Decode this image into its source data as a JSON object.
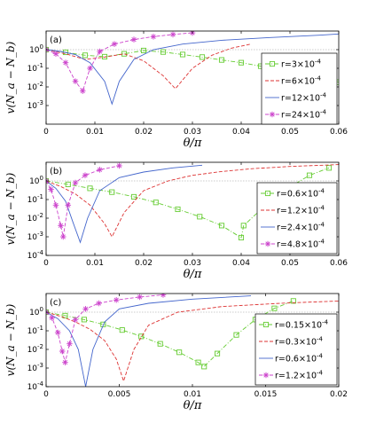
{
  "chart_data": [
    {
      "type": "line",
      "panel_label": "(a)",
      "xlabel": "θ/π",
      "ylabel": "v(N_a − N_b)",
      "y_scale": "log",
      "xlim": [
        0,
        0.06
      ],
      "ylim": [
        0.0001,
        10
      ],
      "xticks": [
        "0",
        "0.01",
        "0.02",
        "0.03",
        "0.04",
        "0.05",
        "0.06"
      ],
      "yticks": [
        "10^0",
        "10^-1",
        "10^-2",
        "10^-3"
      ],
      "reference_line_y": 1,
      "legend_position": "right",
      "series": [
        {
          "name": "r=3×10^-4",
          "color": "#66cc33",
          "dash": "dashdot",
          "marker": "square",
          "x": [
            0,
            0.004,
            0.008,
            0.012,
            0.016,
            0.02,
            0.024,
            0.028,
            0.032,
            0.036,
            0.04,
            0.044,
            0.048,
            0.052,
            0.056,
            0.06
          ],
          "y": [
            1.0,
            0.72,
            0.5,
            0.42,
            0.6,
            0.9,
            0.75,
            0.55,
            0.4,
            0.28,
            0.2,
            0.13,
            0.085,
            0.05,
            0.03,
            0.018
          ]
        },
        {
          "name": "r=6×10^-4",
          "color": "#dd3333",
          "dash": "dashed",
          "marker": "none",
          "x": [
            0,
            0.004,
            0.008,
            0.012,
            0.016,
            0.02,
            0.024,
            0.0265,
            0.03,
            0.034,
            0.038,
            0.042
          ],
          "y": [
            1.0,
            0.6,
            0.3,
            0.4,
            0.6,
            0.25,
            0.04,
            0.008,
            0.1,
            0.5,
            1.2,
            2.0
          ]
        },
        {
          "name": "r=12×10^-4",
          "color": "#4466cc",
          "dash": "solid",
          "marker": "none",
          "x": [
            0,
            0.003,
            0.006,
            0.009,
            0.012,
            0.0135,
            0.015,
            0.018,
            0.022,
            0.028,
            0.036,
            0.046,
            0.056,
            0.06
          ],
          "y": [
            1.0,
            0.8,
            0.55,
            0.2,
            0.02,
            0.0012,
            0.02,
            0.3,
            1.0,
            2.0,
            3.2,
            4.5,
            6.0,
            7.0
          ]
        },
        {
          "name": "r=24×10^-4",
          "color": "#cc44cc",
          "dash": "dashed",
          "marker": "asterisk",
          "x": [
            0,
            0.002,
            0.004,
            0.006,
            0.0075,
            0.009,
            0.011,
            0.014,
            0.018,
            0.022,
            0.026,
            0.03
          ],
          "y": [
            1.0,
            0.6,
            0.2,
            0.02,
            0.006,
            0.1,
            0.8,
            2.0,
            3.5,
            5.0,
            6.5,
            8.0
          ]
        }
      ]
    },
    {
      "type": "line",
      "panel_label": "(b)",
      "xlabel": "θ/π",
      "ylabel": "v(N_a − N_b)",
      "y_scale": "log",
      "xlim": [
        0,
        0.06
      ],
      "ylim": [
        0.0001,
        10
      ],
      "xticks": [
        "0",
        "0.01",
        "0.02",
        "0.03",
        "0.04",
        "0.05",
        "0.06"
      ],
      "yticks": [
        "10^0",
        "10^-1",
        "10^-2",
        "10^-3",
        "10^-4"
      ],
      "reference_line_y": 1,
      "legend_position": "right",
      "series": [
        {
          "name": "r=0.6×10^-4",
          "color": "#66cc33",
          "dash": "dashdot",
          "marker": "square",
          "x": [
            0,
            0.0045,
            0.009,
            0.0135,
            0.018,
            0.0225,
            0.027,
            0.0315,
            0.036,
            0.04,
            0.0405,
            0.045,
            0.0495,
            0.054,
            0.058
          ],
          "y": [
            1.0,
            0.65,
            0.4,
            0.25,
            0.14,
            0.07,
            0.03,
            0.012,
            0.004,
            0.0009,
            0.004,
            0.05,
            0.4,
            2.0,
            5.0
          ]
        },
        {
          "name": "r=1.2×10^-4",
          "color": "#dd3333",
          "dash": "dashed",
          "marker": "none",
          "x": [
            0,
            0.003,
            0.006,
            0.009,
            0.012,
            0.0135,
            0.016,
            0.02,
            0.025,
            0.03,
            0.036,
            0.042,
            0.05,
            0.06
          ],
          "y": [
            1.0,
            0.5,
            0.2,
            0.05,
            0.005,
            0.001,
            0.02,
            0.3,
            1.0,
            2.0,
            3.2,
            4.5,
            6.0,
            7.5
          ]
        },
        {
          "name": "r=2.4×10^-4",
          "color": "#4466cc",
          "dash": "solid",
          "marker": "none",
          "x": [
            0,
            0.002,
            0.004,
            0.0055,
            0.007,
            0.0085,
            0.011,
            0.015,
            0.02,
            0.026,
            0.032
          ],
          "y": [
            1.0,
            0.4,
            0.08,
            0.006,
            0.0005,
            0.01,
            0.3,
            1.5,
            3.0,
            5.0,
            7.0
          ]
        },
        {
          "name": "r=4.8×10^-4",
          "color": "#cc44cc",
          "dash": "dashed",
          "marker": "asterisk",
          "x": [
            0,
            0.001,
            0.002,
            0.003,
            0.0035,
            0.0045,
            0.006,
            0.008,
            0.011,
            0.015
          ],
          "y": [
            1.0,
            0.35,
            0.05,
            0.004,
            0.001,
            0.05,
            0.8,
            2.0,
            4.0,
            6.5
          ]
        }
      ]
    },
    {
      "type": "line",
      "panel_label": "(c)",
      "xlabel": "θ/π",
      "ylabel": "v(N_a − N_b)",
      "y_scale": "log",
      "xlim": [
        0,
        0.02
      ],
      "ylim": [
        0.0001,
        10
      ],
      "xticks": [
        "0",
        "0.005",
        "0.01",
        "0.015",
        "0.02"
      ],
      "yticks": [
        "10^0",
        "10^-1",
        "10^-2",
        "10^-3",
        "10^-4"
      ],
      "reference_line_y": 1,
      "legend_position": "right",
      "series": [
        {
          "name": "r=0.15×10^-4",
          "color": "#66cc33",
          "dash": "dashdot",
          "marker": "square",
          "x": [
            0,
            0.0013,
            0.0026,
            0.0039,
            0.0052,
            0.0065,
            0.0078,
            0.0091,
            0.0104,
            0.0108,
            0.0117,
            0.013,
            0.0143,
            0.0156,
            0.0169
          ],
          "y": [
            1.0,
            0.65,
            0.4,
            0.22,
            0.11,
            0.05,
            0.02,
            0.007,
            0.002,
            0.0012,
            0.006,
            0.06,
            0.4,
            1.6,
            4.0
          ]
        },
        {
          "name": "r=0.3×10^-4",
          "color": "#dd3333",
          "dash": "dashed",
          "marker": "none",
          "x": [
            0,
            0.001,
            0.002,
            0.003,
            0.004,
            0.0048,
            0.0053,
            0.006,
            0.007,
            0.009,
            0.012,
            0.016,
            0.02
          ],
          "y": [
            1.0,
            0.6,
            0.3,
            0.12,
            0.03,
            0.003,
            0.0002,
            0.01,
            0.2,
            1.0,
            2.0,
            3.0,
            4.0
          ]
        },
        {
          "name": "r=0.6×10^-4",
          "color": "#4466cc",
          "dash": "solid",
          "marker": "none",
          "x": [
            0,
            0.0008,
            0.0016,
            0.0022,
            0.0027,
            0.0032,
            0.004,
            0.005,
            0.007,
            0.01,
            0.014
          ],
          "y": [
            1.0,
            0.45,
            0.1,
            0.01,
            0.0001,
            0.01,
            0.3,
            1.5,
            3.0,
            5.0,
            7.5
          ]
        },
        {
          "name": "r=1.2×10^-4",
          "color": "#cc44cc",
          "dash": "dashed",
          "marker": "asterisk",
          "x": [
            0,
            0.0004,
            0.0008,
            0.0011,
            0.0013,
            0.0016,
            0.002,
            0.0027,
            0.0036,
            0.0048,
            0.0064,
            0.008
          ],
          "y": [
            1.0,
            0.5,
            0.08,
            0.008,
            0.002,
            0.02,
            0.4,
            1.5,
            3.0,
            4.5,
            6.5,
            8.5
          ]
        }
      ]
    }
  ]
}
